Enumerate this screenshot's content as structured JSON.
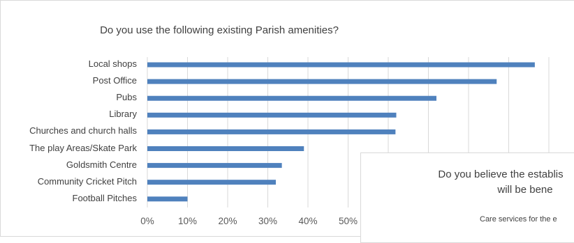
{
  "chart_data": {
    "type": "bar",
    "orientation": "horizontal",
    "title": "Do you use the following existing Parish amenities?",
    "categories": [
      "Local shops",
      "Post Office",
      "Pubs",
      "Library",
      "Churches and church halls",
      "The play Areas/Skate Park",
      "Goldsmith Centre",
      "Community Cricket Pitch",
      "Football Pitches"
    ],
    "values": [
      96.5,
      87,
      72,
      62,
      61.8,
      39,
      33.5,
      32,
      10
    ],
    "xlim": [
      0,
      100
    ],
    "x_ticks": [
      "0%",
      "10%",
      "20%",
      "30%",
      "40%",
      "50%"
    ],
    "grid": true,
    "bar_color": "#4f81bd",
    "grid_color": "#d9d9d9"
  },
  "inset": {
    "title_line1": "Do you believe the establis",
    "title_line2": "will be bene",
    "first_item": "Care services for the e"
  }
}
